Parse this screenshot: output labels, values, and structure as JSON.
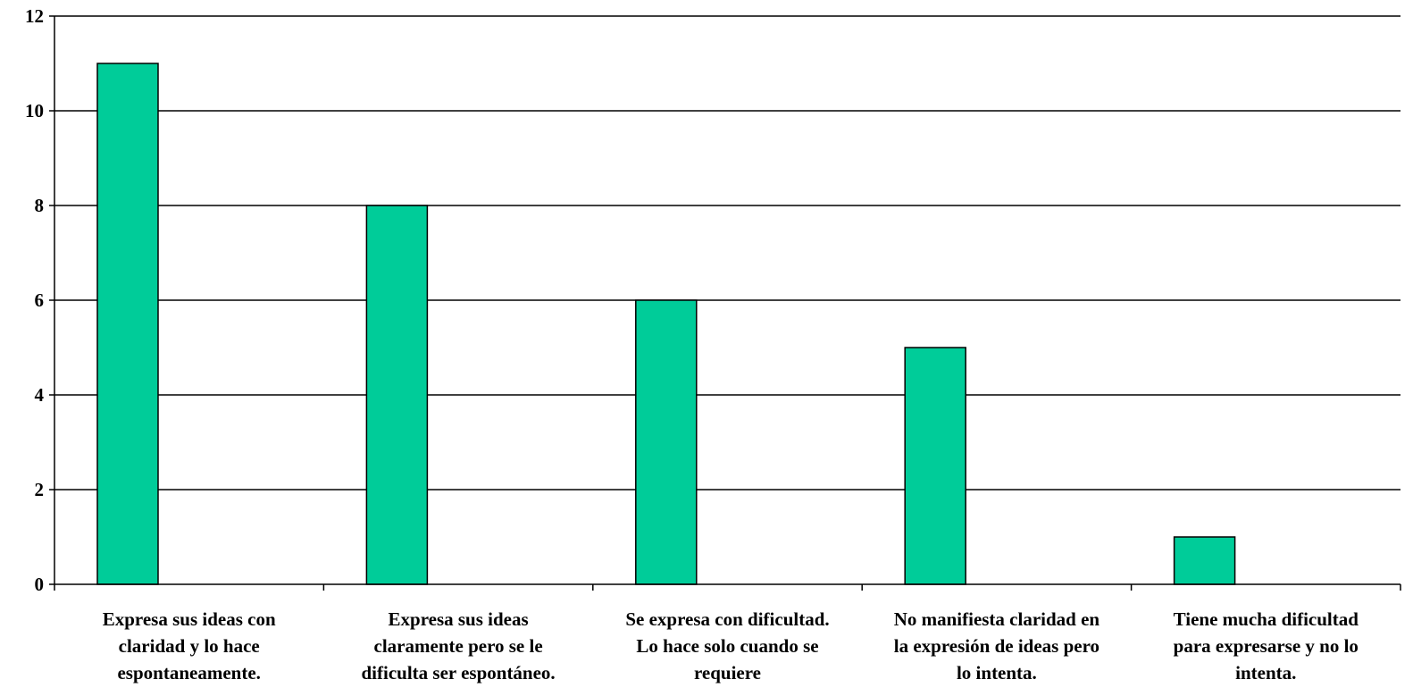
{
  "chart_data": {
    "type": "bar",
    "categories": [
      [
        "Expresa sus ideas con",
        "claridad y lo hace",
        "espontaneamente."
      ],
      [
        "Expresa sus ideas",
        "claramente pero se le",
        "dificulta ser espontáneo."
      ],
      [
        "Se expresa con dificultad.",
        "Lo hace solo cuando se",
        "requiere"
      ],
      [
        "No manifiesta claridad en",
        "la expresión de ideas pero",
        "lo intenta."
      ],
      [
        "Tiene mucha dificultad",
        "para expresarse y no lo",
        "intenta."
      ]
    ],
    "values": [
      11,
      8,
      6,
      5,
      1
    ],
    "ylim": [
      0,
      12
    ],
    "yticks": [
      "0",
      "2",
      "4",
      "6",
      "8",
      "10",
      "12"
    ],
    "grid": true,
    "legend": "none",
    "bar_color": "#00cc99",
    "title": "",
    "xlabel": "",
    "ylabel": ""
  }
}
